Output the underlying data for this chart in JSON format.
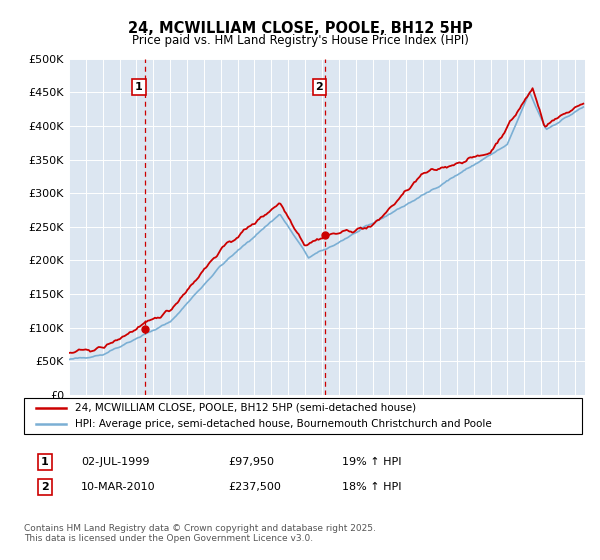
{
  "title": "24, MCWILLIAM CLOSE, POOLE, BH12 5HP",
  "subtitle": "Price paid vs. HM Land Registry's House Price Index (HPI)",
  "red_label": "24, MCWILLIAM CLOSE, POOLE, BH12 5HP (semi-detached house)",
  "blue_label": "HPI: Average price, semi-detached house, Bournemouth Christchurch and Poole",
  "footnote": "Contains HM Land Registry data © Crown copyright and database right 2025.\nThis data is licensed under the Open Government Licence v3.0.",
  "sale1_date": "02-JUL-1999",
  "sale1_price": 97950,
  "sale1_price_str": "£97,950",
  "sale1_pct": "19% ↑ HPI",
  "sale2_date": "10-MAR-2010",
  "sale2_price": 237500,
  "sale2_price_str": "£237,500",
  "sale2_pct": "18% ↑ HPI",
  "red_color": "#cc0000",
  "blue_color": "#7bafd4",
  "dashed_color": "#cc0000",
  "background_color": "#ffffff",
  "plot_bg_color": "#dce6f1",
  "ylim": [
    0,
    500000
  ],
  "yticks": [
    0,
    50000,
    100000,
    150000,
    200000,
    250000,
    300000,
    350000,
    400000,
    450000,
    500000
  ],
  "xstart": 1995,
  "xend": 2025,
  "sale1_x": 1999.5,
  "sale2_x": 2010.2
}
